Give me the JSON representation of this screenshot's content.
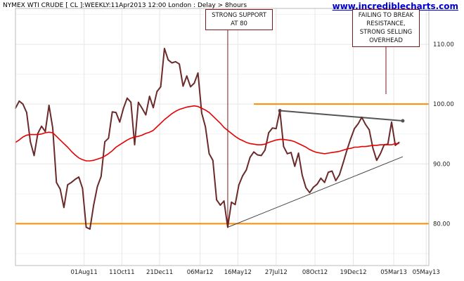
{
  "header": {
    "title": "NYMEX WTI CRUDE [ CL ]:WEEKLY:11Apr2013 12:00 London : Delay > 8hours",
    "site": "www.incrediblecharts.com"
  },
  "annotations": [
    {
      "lines": [
        "STRONG SUPPORT",
        "AT 80"
      ]
    },
    {
      "lines": [
        "FAILING TO BREAK",
        "RESISTANCE,",
        "STRONG SELLING",
        "OVERHEAD"
      ]
    }
  ],
  "colors": {
    "price": "#6b2a2a",
    "ma": "#e60000",
    "support_resistance": "#ff8c00",
    "trendline": "#444444",
    "resistance_trendline": "#555555",
    "grid": "#e6e6e6"
  },
  "chart_data": {
    "type": "line",
    "title": "NYMEX WTI CRUDE [ CL ]:WEEKLY:11Apr2013 12:00 London : Delay > 8hours",
    "x_start": "2011-03-25",
    "interval": "weekly",
    "ylim": [
      73,
      116
    ],
    "yticks": [
      80,
      90,
      100,
      110
    ],
    "ytick_labels": [
      "80.00",
      "90.00",
      "100.00",
      "110.00"
    ],
    "xticks": [
      "01Aug11",
      "11Oct11",
      "21Dec11",
      "06Mar12",
      "16May12",
      "27Jul12",
      "08Oct12",
      "19Dec12",
      "05Mar13",
      "05May13"
    ],
    "grid": true,
    "series": [
      {
        "role": "price",
        "values": [
          99.3,
          100.5,
          100.0,
          98.6,
          93.7,
          91.4,
          95.1,
          96.3,
          95.4,
          99.8,
          96.0,
          86.9,
          85.8,
          82.7,
          86.5,
          86.9,
          87.4,
          87.8,
          85.9,
          79.4,
          79.1,
          83.1,
          86.2,
          87.9,
          93.7,
          94.3,
          98.7,
          98.6,
          97.0,
          99.3,
          101.0,
          100.3,
          93.2,
          100.3,
          99.3,
          98.2,
          101.3,
          99.4,
          102.1,
          102.9,
          109.3,
          107.4,
          106.9,
          107.1,
          106.7,
          103.0,
          104.7,
          102.9,
          103.5,
          105.2,
          98.5,
          96.2,
          91.7,
          90.6,
          84.0,
          83.1,
          83.8,
          79.4,
          83.6,
          83.2,
          86.5,
          88.0,
          89.0,
          91.1,
          92.0,
          91.5,
          91.4,
          92.3,
          95.2,
          96.0,
          95.9,
          98.9,
          92.9,
          91.7,
          91.9,
          89.6,
          91.8,
          88.1,
          86.0,
          85.2,
          86.1,
          86.6,
          87.6,
          86.9,
          88.6,
          88.8,
          87.2,
          88.2,
          90.2,
          92.3,
          94.2,
          95.9,
          96.7,
          97.8,
          96.6,
          95.7,
          92.6,
          90.6,
          91.7,
          93.2,
          93.3,
          97.0,
          93.1,
          93.6
        ]
      },
      {
        "role": "moving-average",
        "values": [
          93.6,
          94.0,
          94.5,
          94.8,
          94.9,
          94.9,
          94.9,
          95.0,
          95.2,
          95.3,
          95.2,
          94.6,
          94.0,
          93.4,
          92.8,
          92.1,
          91.5,
          91.0,
          90.7,
          90.5,
          90.5,
          90.6,
          90.8,
          91.0,
          91.3,
          91.7,
          92.2,
          92.8,
          93.2,
          93.6,
          94.0,
          94.3,
          94.5,
          94.6,
          94.8,
          95.1,
          95.3,
          95.6,
          96.2,
          96.8,
          97.4,
          97.9,
          98.4,
          98.8,
          99.1,
          99.3,
          99.5,
          99.6,
          99.7,
          99.6,
          99.3,
          99.0,
          98.6,
          98.0,
          97.4,
          96.8,
          96.1,
          95.6,
          95.1,
          94.6,
          94.2,
          93.9,
          93.6,
          93.4,
          93.3,
          93.2,
          93.2,
          93.3,
          93.6,
          93.8,
          94.0,
          94.1,
          94.1,
          94.0,
          93.9,
          93.7,
          93.4,
          93.1,
          92.8,
          92.4,
          92.1,
          91.9,
          91.8,
          91.7,
          91.8,
          91.9,
          92.0,
          92.1,
          92.3,
          92.5,
          92.6,
          92.8,
          92.8,
          92.9,
          92.9,
          93.0,
          93.1,
          93.1,
          93.2,
          93.2,
          93.2,
          93.2,
          93.4,
          93.4
        ]
      }
    ],
    "horizontal_lines": [
      80,
      100
    ]
  }
}
